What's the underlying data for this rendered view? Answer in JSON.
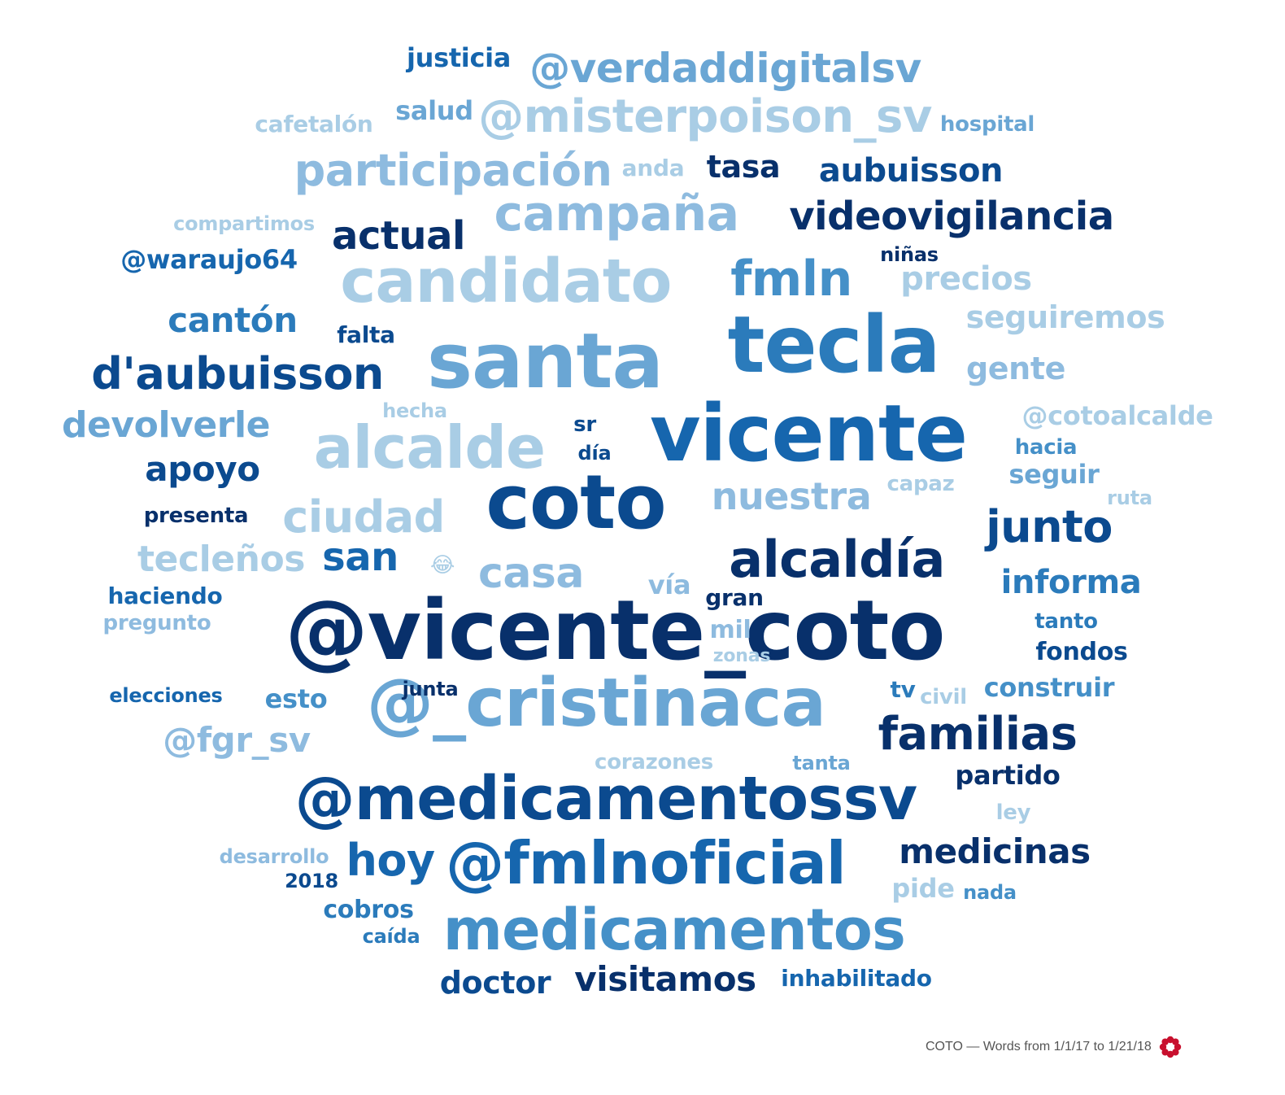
{
  "colors": [
    "#08306b",
    "#0b4a8f",
    "#1666ae",
    "#2b7bbb",
    "#4590c8",
    "#6aa6d4",
    "#8ebbdf",
    "#a9cde5"
  ],
  "logo_color": "#c8102e",
  "footer": {
    "text": "COTO — Words from 1/1/17 to 1/21/18",
    "logo_icon": "flower-logo-icon"
  },
  "words": [
    {
      "text": "@vicente_coto",
      "tone": 0
    },
    {
      "text": "vicente",
      "tone": 2
    },
    {
      "text": "santa",
      "tone": 5
    },
    {
      "text": "tecla",
      "tone": 3
    },
    {
      "text": "coto",
      "tone": 1
    },
    {
      "text": "@_cristinaca",
      "tone": 5
    },
    {
      "text": "@medicamentossv",
      "tone": 1
    },
    {
      "text": "@fmlnoficial",
      "tone": 2
    },
    {
      "text": "medicamentos",
      "tone": 4
    },
    {
      "text": "alcaldía",
      "tone": 0
    },
    {
      "text": "alcalde",
      "tone": 7
    },
    {
      "text": "candidato",
      "tone": 7
    },
    {
      "text": "campaña",
      "tone": 6
    },
    {
      "text": "fmln",
      "tone": 4
    },
    {
      "text": "participación",
      "tone": 6
    },
    {
      "text": "@misterpoison_sv",
      "tone": 7
    },
    {
      "text": "@verdaddigitalsv",
      "tone": 5
    },
    {
      "text": "videovigilancia",
      "tone": 0
    },
    {
      "text": "d'aubuisson",
      "tone": 1
    },
    {
      "text": "familias",
      "tone": 0
    },
    {
      "text": "junto",
      "tone": 1
    },
    {
      "text": "ciudad",
      "tone": 7
    },
    {
      "text": "nuestra",
      "tone": 6
    },
    {
      "text": "casa",
      "tone": 6
    },
    {
      "text": "hoy",
      "tone": 2
    },
    {
      "text": "medicinas",
      "tone": 0
    },
    {
      "text": "visitamos",
      "tone": 0
    },
    {
      "text": "doctor",
      "tone": 1
    },
    {
      "text": "aubuisson",
      "tone": 1
    },
    {
      "text": "actual",
      "tone": 0
    },
    {
      "text": "tasa",
      "tone": 0
    },
    {
      "text": "cantón",
      "tone": 3
    },
    {
      "text": "apoyo",
      "tone": 1
    },
    {
      "text": "devolverle",
      "tone": 5
    },
    {
      "text": "san",
      "tone": 2
    },
    {
      "text": "tecleños",
      "tone": 7
    },
    {
      "text": "informa",
      "tone": 3
    },
    {
      "text": "seguiremos",
      "tone": 7
    },
    {
      "text": "precios",
      "tone": 7
    },
    {
      "text": "gente",
      "tone": 6
    },
    {
      "text": "@cotoalcalde",
      "tone": 7
    },
    {
      "text": "@fgr_sv",
      "tone": 6
    },
    {
      "text": "@waraujo64",
      "tone": 2
    },
    {
      "text": "justicia",
      "tone": 2
    },
    {
      "text": "salud",
      "tone": 5
    },
    {
      "text": "cafetalón",
      "tone": 7
    },
    {
      "text": "hospital",
      "tone": 5
    },
    {
      "text": "anda",
      "tone": 7
    },
    {
      "text": "compartimos",
      "tone": 7
    },
    {
      "text": "niñas",
      "tone": 0
    },
    {
      "text": "falta",
      "tone": 1
    },
    {
      "text": "hecha",
      "tone": 7
    },
    {
      "text": "sr",
      "tone": 1
    },
    {
      "text": "día",
      "tone": 1
    },
    {
      "text": "hacia",
      "tone": 4
    },
    {
      "text": "seguir",
      "tone": 5
    },
    {
      "text": "capaz",
      "tone": 7
    },
    {
      "text": "ruta",
      "tone": 7
    },
    {
      "text": "presenta",
      "tone": 0
    },
    {
      "text": "😂",
      "tone": 7
    },
    {
      "text": "haciendo",
      "tone": 2
    },
    {
      "text": "pregunto",
      "tone": 6
    },
    {
      "text": "vía",
      "tone": 6
    },
    {
      "text": "gran",
      "tone": 0
    },
    {
      "text": "mil",
      "tone": 6
    },
    {
      "text": "zonas",
      "tone": 7
    },
    {
      "text": "tanto",
      "tone": 3
    },
    {
      "text": "fondos",
      "tone": 1
    },
    {
      "text": "elecciones",
      "tone": 2
    },
    {
      "text": "junta",
      "tone": 0
    },
    {
      "text": "esto",
      "tone": 4
    },
    {
      "text": "tv",
      "tone": 3
    },
    {
      "text": "civil",
      "tone": 7
    },
    {
      "text": "construir",
      "tone": 4
    },
    {
      "text": "corazones",
      "tone": 7
    },
    {
      "text": "tanta",
      "tone": 5
    },
    {
      "text": "partido",
      "tone": 0
    },
    {
      "text": "ley",
      "tone": 7
    },
    {
      "text": "desarrollo",
      "tone": 6
    },
    {
      "text": "2018",
      "tone": 1
    },
    {
      "text": "cobros",
      "tone": 3
    },
    {
      "text": "caída",
      "tone": 3
    },
    {
      "text": "pide",
      "tone": 7
    },
    {
      "text": "nada",
      "tone": 4
    },
    {
      "text": "inhabilitado",
      "tone": 2
    }
  ]
}
